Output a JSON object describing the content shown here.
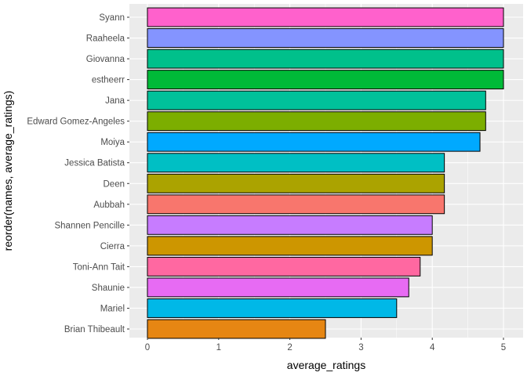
{
  "chart_data": {
    "type": "bar",
    "orientation": "horizontal",
    "title": "",
    "xlabel": "average_ratings",
    "ylabel": "reorder(names, average_ratings)",
    "xlim": [
      0,
      5
    ],
    "x_ticks": [
      0,
      1,
      2,
      3,
      4,
      5
    ],
    "grid": true,
    "legend": "none",
    "panel_background": "#EBEBEB",
    "bar_outline": "#000000",
    "categories": [
      "Syann",
      "Raaheela",
      "Giovanna",
      "estheerr",
      "Jana",
      "Edward Gomez-Angeles",
      "Moiya",
      "Jessica Batista",
      "Deen",
      "Aubbah",
      "Shannen Pencille",
      "Cierra",
      "Toni-Ann Tait",
      "Shaunie",
      "Mariel",
      "Brian Thibeault"
    ],
    "values": [
      5.0,
      5.0,
      5.0,
      5.0,
      4.75,
      4.75,
      4.67,
      4.17,
      4.17,
      4.17,
      4.0,
      4.0,
      3.83,
      3.67,
      3.5,
      2.5
    ],
    "colors": [
      "#FF61CC",
      "#8494FF",
      "#00C08B",
      "#00BA38",
      "#00C19A",
      "#7CAE00",
      "#00A9FF",
      "#00BFC4",
      "#ABA300",
      "#F8766D",
      "#C77CFF",
      "#CD9600",
      "#FF68A1",
      "#E76BF3",
      "#00B8E7",
      "#E68613"
    ]
  }
}
